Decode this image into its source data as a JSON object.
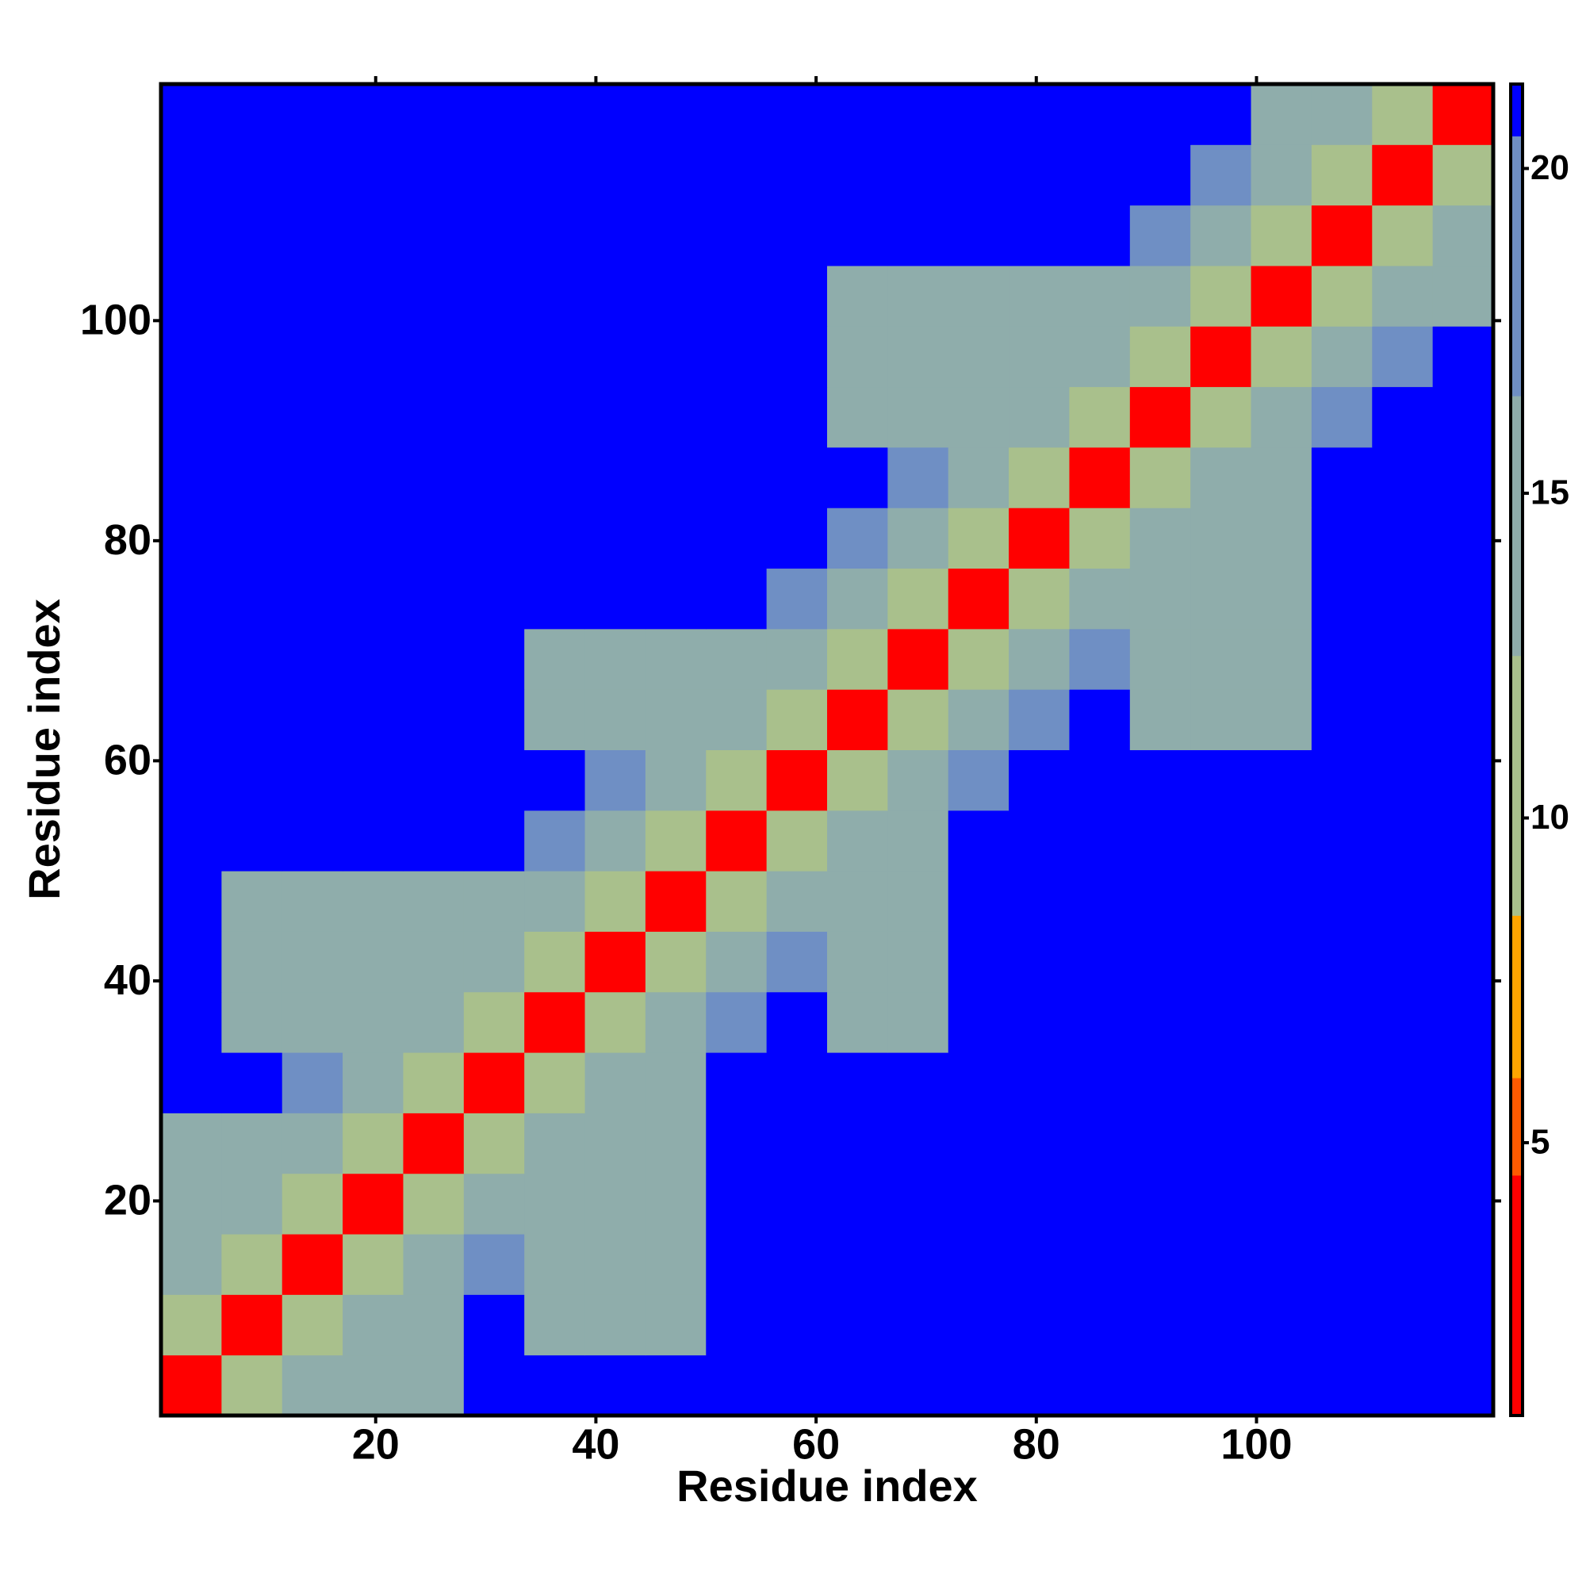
{
  "chart_data": {
    "type": "heatmap",
    "x_label": "Residue index",
    "y_label": "Residue index",
    "xlim": [
      0.5,
      121.5
    ],
    "ylim": [
      0.5,
      121.5
    ],
    "xticks": [
      20,
      40,
      60,
      80,
      100
    ],
    "yticks": [
      20,
      40,
      60,
      80,
      100
    ],
    "xbins": [
      0.5,
      6,
      11.5,
      17,
      22.5,
      28,
      33.5,
      39,
      44.5,
      50,
      55.5,
      61,
      66.5,
      72,
      77.5,
      83,
      88.5,
      94,
      99.5,
      105,
      110.5,
      116,
      121.5
    ],
    "ybins": [
      0.5,
      6,
      11.5,
      17,
      22.5,
      28,
      33.5,
      39,
      44.5,
      50,
      55.5,
      61,
      66.5,
      72,
      77.5,
      83,
      88.5,
      94,
      99.5,
      105,
      110.5,
      116,
      121.5
    ],
    "z": [
      [
        4,
        12,
        15,
        16,
        16,
        21,
        21,
        21,
        21,
        21,
        21,
        21,
        21,
        21,
        21,
        21,
        21,
        21,
        21,
        21,
        21,
        21
      ],
      [
        12,
        4,
        12,
        15,
        16,
        21,
        15,
        15,
        15,
        21,
        21,
        21,
        21,
        21,
        21,
        21,
        21,
        21,
        21,
        21,
        21,
        21
      ],
      [
        15,
        12,
        4,
        12,
        15,
        18,
        15,
        15,
        15,
        21,
        21,
        21,
        21,
        21,
        21,
        21,
        21,
        21,
        21,
        21,
        21,
        21
      ],
      [
        16,
        15,
        12,
        4,
        12,
        15,
        15,
        15,
        15,
        21,
        21,
        21,
        21,
        21,
        21,
        21,
        21,
        21,
        21,
        21,
        21,
        21
      ],
      [
        16,
        16,
        15,
        12,
        4,
        12,
        15,
        15,
        15,
        21,
        21,
        21,
        21,
        21,
        21,
        21,
        21,
        21,
        21,
        21,
        21,
        21
      ],
      [
        21,
        21,
        18,
        15,
        12,
        4,
        12,
        15,
        15,
        21,
        21,
        21,
        21,
        21,
        21,
        21,
        21,
        21,
        21,
        21,
        21,
        21
      ],
      [
        21,
        15,
        15,
        15,
        15,
        12,
        4,
        12,
        15,
        18,
        21,
        15,
        15,
        21,
        21,
        21,
        21,
        21,
        21,
        21,
        21,
        21
      ],
      [
        21,
        15,
        15,
        15,
        15,
        15,
        12,
        4,
        12,
        15,
        18,
        15,
        15,
        21,
        21,
        21,
        21,
        21,
        21,
        21,
        21,
        21
      ],
      [
        21,
        15,
        15,
        15,
        15,
        15,
        15,
        12,
        4,
        12,
        15,
        15,
        15,
        21,
        21,
        21,
        21,
        21,
        21,
        21,
        21,
        21
      ],
      [
        21,
        21,
        21,
        21,
        21,
        21,
        18,
        15,
        12,
        4,
        12,
        15,
        15,
        21,
        21,
        21,
        21,
        21,
        21,
        21,
        21,
        21
      ],
      [
        21,
        21,
        21,
        21,
        21,
        21,
        21,
        18,
        15,
        12,
        4,
        12,
        15,
        18,
        21,
        21,
        21,
        21,
        21,
        21,
        21,
        21
      ],
      [
        21,
        21,
        21,
        21,
        21,
        21,
        15,
        15,
        15,
        15,
        12,
        4,
        12,
        15,
        18,
        21,
        15,
        15,
        15,
        21,
        21,
        21
      ],
      [
        21,
        21,
        21,
        21,
        21,
        21,
        15,
        15,
        15,
        15,
        15,
        12,
        4,
        12,
        15,
        18,
        15,
        15,
        15,
        21,
        21,
        21
      ],
      [
        21,
        21,
        21,
        21,
        21,
        21,
        21,
        21,
        21,
        21,
        18,
        15,
        12,
        4,
        12,
        15,
        15,
        15,
        15,
        21,
        21,
        21
      ],
      [
        21,
        21,
        21,
        21,
        21,
        21,
        21,
        21,
        21,
        21,
        21,
        18,
        15,
        12,
        4,
        12,
        15,
        15,
        15,
        21,
        21,
        21
      ],
      [
        21,
        21,
        21,
        21,
        21,
        21,
        21,
        21,
        21,
        21,
        21,
        21,
        18,
        15,
        12,
        4,
        12,
        15,
        15,
        21,
        21,
        21
      ],
      [
        21,
        21,
        21,
        21,
        21,
        21,
        21,
        21,
        21,
        21,
        21,
        15,
        15,
        15,
        15,
        12,
        4,
        12,
        15,
        18,
        21,
        21
      ],
      [
        21,
        21,
        21,
        21,
        21,
        21,
        21,
        21,
        21,
        21,
        21,
        15,
        15,
        15,
        15,
        15,
        12,
        4,
        12,
        15,
        18,
        21
      ],
      [
        21,
        21,
        21,
        21,
        21,
        21,
        21,
        21,
        21,
        21,
        21,
        15,
        15,
        15,
        15,
        15,
        15,
        12,
        4,
        12,
        15,
        16
      ],
      [
        21,
        21,
        21,
        21,
        21,
        21,
        21,
        21,
        21,
        21,
        21,
        21,
        21,
        21,
        21,
        21,
        18,
        15,
        12,
        4,
        12,
        15
      ],
      [
        21,
        21,
        21,
        21,
        21,
        21,
        21,
        21,
        21,
        21,
        21,
        21,
        21,
        21,
        21,
        21,
        21,
        18,
        15,
        12,
        4,
        12
      ],
      [
        21,
        21,
        21,
        21,
        21,
        21,
        21,
        21,
        21,
        21,
        21,
        21,
        21,
        21,
        21,
        21,
        21,
        21,
        16,
        15,
        12,
        4
      ]
    ],
    "zlim": [
      0.8,
      21.3
    ],
    "zticks": [
      5,
      10,
      15,
      20
    ],
    "colorscale": [
      {
        "max": 4.5,
        "color": "#ff0000"
      },
      {
        "max": 6,
        "color": "#ff5a00"
      },
      {
        "max": 8.5,
        "color": "#ffa500"
      },
      {
        "max": 12.5,
        "color": "#a9c08c"
      },
      {
        "max": 16.5,
        "color": "#8fadab"
      },
      {
        "max": 20.5,
        "color": "#6f8fc4"
      },
      {
        "max": 21.3,
        "color": "#0000ff"
      }
    ]
  }
}
